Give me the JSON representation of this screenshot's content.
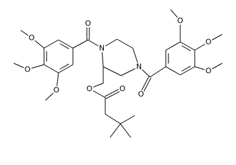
{
  "molecule": {
    "atoms": [
      {
        "label": "O"
      },
      {
        "label": "N"
      },
      {
        "label": "N"
      },
      {
        "label": "O"
      },
      {
        "label": "O"
      },
      {
        "label": "O"
      },
      {
        "label": "O"
      },
      {
        "label": "O"
      },
      {
        "label": "O"
      },
      {
        "label": "O"
      },
      {
        "label": "O"
      },
      {
        "label": "O"
      }
    ]
  }
}
